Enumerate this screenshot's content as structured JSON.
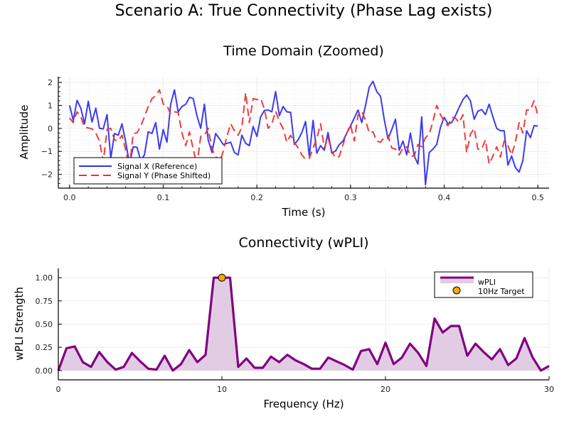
{
  "figure": {
    "suptitle": "Scenario A: True Connectivity (Phase Lag exists)"
  },
  "colors": {
    "signal_x": "#3030f0",
    "signal_y": "#f03030",
    "wpli_line": "#800080",
    "wpli_fill": "#e2cce4",
    "target_marker": "#ffa500",
    "grid": "#ececec"
  },
  "chart_data": [
    {
      "type": "line",
      "title": "Time Domain (Zoomed)",
      "xlabel": "Time (s)",
      "ylabel": "Amplitude",
      "xlim": [
        -0.012,
        0.512
      ],
      "ylim": [
        -2.6,
        2.25
      ],
      "xticks": [
        "0.0",
        "0.1",
        "0.2",
        "0.3",
        "0.4",
        "0.5"
      ],
      "xtick_values": [
        0.0,
        0.1,
        0.2,
        0.3,
        0.4,
        0.5
      ],
      "yticks": [
        "2",
        "1",
        "0",
        "−1",
        "−2"
      ],
      "ytick_values": [
        2,
        1,
        0,
        -1,
        -2
      ],
      "grid": true,
      "legend_position": "bottom-left",
      "x_start": 0.0,
      "x_step": 0.004,
      "series": [
        {
          "name": "Signal X (Reference)",
          "style": "solid",
          "values": [
            1.0,
            0.35,
            1.22,
            0.88,
            0.2,
            1.18,
            0.28,
            0.88,
            0.0,
            -0.02,
            0.6,
            -1.3,
            -0.22,
            -0.3,
            0.2,
            -0.6,
            -1.55,
            -0.8,
            -0.82,
            -1.4,
            -1.15,
            -0.15,
            -0.22,
            0.25,
            -0.9,
            -0.05,
            -0.6,
            1.05,
            1.68,
            0.72,
            0.95,
            1.05,
            1.35,
            1.3,
            0.55,
            0.0,
            1.05,
            -0.5,
            -1.05,
            -0.22,
            -0.45,
            -0.7,
            -0.65,
            -0.6,
            -1.05,
            -1.15,
            -0.3,
            -0.65,
            -0.75,
            0.08,
            -0.35,
            0.5,
            0.78,
            0.8,
            0.72,
            1.6,
            0.55,
            0.95,
            0.72,
            0.7,
            -0.7,
            -0.5,
            -0.18,
            0.3,
            -1.2,
            0.35,
            -1.08,
            -0.75,
            -0.95,
            -0.18,
            -1.08,
            -0.98,
            -0.7,
            -0.55,
            -0.2,
            0.1,
            0.45,
            0.8,
            0.25,
            1.0,
            1.8,
            2.05,
            1.6,
            1.4,
            0.4,
            -0.45,
            -0.05,
            0.4,
            -0.95,
            -0.55,
            -1.15,
            -0.2,
            -1.2,
            -1.55,
            0.5,
            -2.45,
            -1.05,
            -0.9,
            -0.7,
            0.05,
            0.48,
            0.2,
            0.25,
            0.55,
            0.92,
            1.25,
            1.45,
            1.2,
            0.4,
            0.75,
            0.82,
            0.6,
            1.05,
            0.5,
            0.0,
            -0.1,
            -0.1,
            -1.6,
            -1.2,
            -1.7,
            -1.9,
            -1.4,
            -0.1,
            -0.4,
            0.12,
            0.1
          ]
        },
        {
          "name": "Signal Y (Phase Shifted)",
          "style": "dashed",
          "values": [
            0.45,
            0.25,
            0.72,
            0.5,
            0.05,
            0.02,
            -0.02,
            -0.2,
            -0.55,
            -1.45,
            -0.05,
            0.0,
            -0.5,
            -0.55,
            -0.3,
            -0.95,
            -1.7,
            -0.22,
            -0.2,
            0.1,
            0.5,
            0.95,
            1.3,
            1.42,
            1.68,
            1.05,
            1.0,
            0.62,
            0.72,
            0.7,
            -0.2,
            -0.75,
            -0.15,
            -0.9,
            -1.6,
            -0.35,
            -0.3,
            0.0,
            -0.9,
            -1.2,
            -1.5,
            -1.0,
            -0.35,
            0.2,
            -0.1,
            -0.3,
            0.05,
            1.55,
            0.25,
            1.3,
            1.25,
            1.3,
            0.85,
            0.0,
            0.2,
            0.75,
            0.3,
            0.0,
            -0.6,
            -0.3,
            -0.6,
            -0.85,
            -1.15,
            -1.35,
            -1.3,
            -0.85,
            -0.45,
            0.2,
            -0.85,
            -0.4,
            -1.0,
            -1.28,
            -1.22,
            -0.7,
            -0.2,
            0.15,
            -0.55,
            0.58,
            0.75,
            0.35,
            -0.2,
            -0.15,
            -0.55,
            -0.6,
            -0.4,
            -0.3,
            -0.85,
            -0.9,
            -1.15,
            -0.85,
            -0.8,
            -1.2,
            -1.2,
            -0.7,
            -0.8,
            -0.4,
            -0.25,
            0.3,
            1.0,
            0.6,
            0.3,
            0.12,
            0.48,
            0.45,
            0.25,
            0.6,
            -1.05,
            -0.25,
            0.0,
            -0.9,
            -0.9,
            -0.5,
            -1.55,
            -1.2,
            -0.8,
            -1.25,
            -0.55,
            -0.75,
            -1.15,
            -0.6,
            0.25,
            -0.2,
            0.8,
            0.8,
            1.2,
            0.55
          ]
        }
      ]
    },
    {
      "type": "area",
      "title": "Connectivity (wPLI)",
      "xlabel": "Frequency (Hz)",
      "ylabel": "wPLI Strength",
      "xlim": [
        0,
        30
      ],
      "ylim": [
        -0.1,
        1.1
      ],
      "xticks": [
        "0",
        "10",
        "20",
        "30"
      ],
      "xtick_values": [
        0,
        10,
        20,
        30
      ],
      "yticks": [
        "1.00",
        "0.75",
        "0.50",
        "0.25",
        "0.00"
      ],
      "ytick_values": [
        1.0,
        0.75,
        0.5,
        0.25,
        0.0
      ],
      "grid": true,
      "legend_position": "top-right",
      "x_start": 0.0,
      "x_step": 0.5,
      "series": [
        {
          "name": "wPLI",
          "values": [
            0.0,
            0.24,
            0.26,
            0.09,
            0.04,
            0.2,
            0.09,
            0.01,
            0.04,
            0.19,
            0.1,
            0.02,
            0.01,
            0.16,
            0.0,
            0.07,
            0.22,
            0.09,
            0.17,
            1.0,
            1.0,
            1.0,
            0.04,
            0.13,
            0.03,
            0.03,
            0.15,
            0.09,
            0.17,
            0.11,
            0.07,
            0.02,
            0.02,
            0.14,
            0.1,
            0.06,
            0.01,
            0.21,
            0.23,
            0.07,
            0.3,
            0.07,
            0.14,
            0.29,
            0.19,
            0.05,
            0.56,
            0.41,
            0.48,
            0.48,
            0.16,
            0.29,
            0.2,
            0.12,
            0.23,
            0.06,
            0.13,
            0.35,
            0.14,
            0.0,
            0.05
          ]
        },
        {
          "name": "10Hz Target",
          "type": "scatter",
          "x": [
            10
          ],
          "y": [
            1.0
          ]
        }
      ]
    }
  ]
}
